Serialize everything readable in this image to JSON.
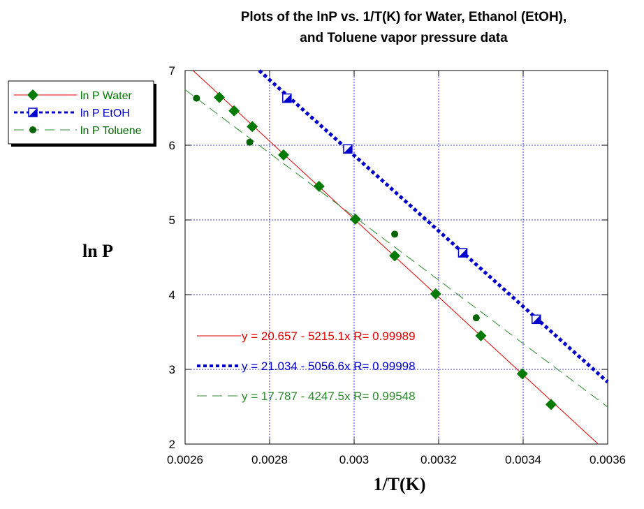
{
  "chart_data": {
    "type": "scatter",
    "title_line1": "Plots of the lnP vs. 1/T(K) for Water, Ethanol (EtOH),",
    "title_line2": "and Toluene vapor pressure data",
    "xlabel": "1/T(K)",
    "ylabel": "ln P",
    "xlim": [
      0.0026,
      0.0036
    ],
    "ylim": [
      2,
      7
    ],
    "x_ticks": [
      "0.0026",
      "0.0028",
      "0.003",
      "0.0032",
      "0.0034",
      "0.0036"
    ],
    "y_ticks": [
      "2",
      "3",
      "4",
      "5",
      "6",
      "7"
    ],
    "grid": true,
    "legend_position": "top-left",
    "series": [
      {
        "name": "ln P Water",
        "color": "#007a00",
        "line_color": "#e00000",
        "marker": "diamond",
        "line_style": "solid",
        "fit": {
          "intercept": 20.657,
          "slope": -5215.1
        },
        "fit_label": "y = 20.657 - 5215.1x   R= 0.99989",
        "x": [
          0.002681,
          0.002716,
          0.002759,
          0.002833,
          0.002917,
          0.003003,
          0.003096,
          0.003193,
          0.0033,
          0.003398,
          0.003466
        ],
        "y": [
          6.64,
          6.46,
          6.25,
          5.87,
          5.45,
          5.01,
          4.52,
          4.01,
          3.45,
          2.94,
          2.53
        ]
      },
      {
        "name": "ln P EtOH",
        "color": "#0000cc",
        "line_color": "#0000cc",
        "marker": "half-square",
        "line_style": "dotted",
        "fit": {
          "intercept": 21.034,
          "slope": -5056.6
        },
        "fit_label": "y = 21.034 - 5056.6x   R= 0.99998",
        "x": [
          0.002841,
          0.002985,
          0.003257,
          0.003431
        ],
        "y": [
          6.63,
          5.95,
          4.56,
          3.67
        ]
      },
      {
        "name": "ln P Toluene",
        "color": "#006400",
        "line_color": "#2e8b2e",
        "marker": "circle",
        "line_style": "dashed",
        "fit": {
          "intercept": 17.787,
          "slope": -4247.5
        },
        "fit_label": "y = 17.787 - 4247.5x   R= 0.99548",
        "x": [
          0.002627,
          0.002753,
          0.003096,
          0.003289
        ],
        "y": [
          6.63,
          6.04,
          4.81,
          3.69
        ]
      }
    ]
  }
}
